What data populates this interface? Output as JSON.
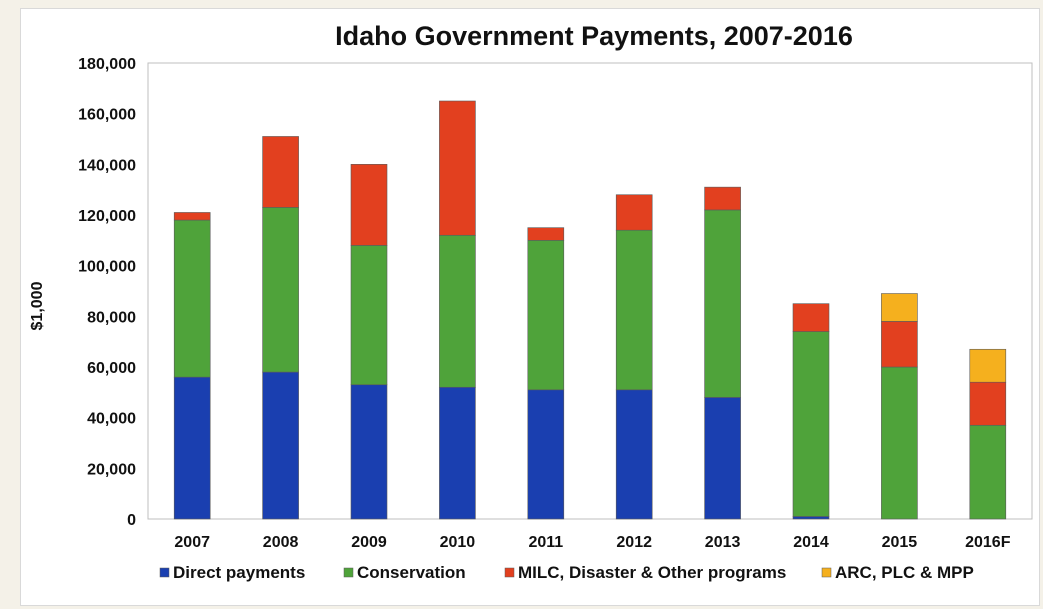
{
  "chart_data": {
    "type": "bar",
    "stacked": true,
    "title": "Idaho Government Payments, 2007-2016",
    "xlabel": "",
    "ylabel": "$1,000",
    "ylim": [
      0,
      180000
    ],
    "yticks": [
      0,
      20000,
      40000,
      60000,
      80000,
      100000,
      120000,
      140000,
      160000,
      180000
    ],
    "ytick_labels": [
      "0",
      "20,000",
      "40,000",
      "60,000",
      "80,000",
      "100,000",
      "120,000",
      "140,000",
      "160,000",
      "180,000"
    ],
    "categories": [
      "2007",
      "2008",
      "2009",
      "2010",
      "2011",
      "2012",
      "2013",
      "2014",
      "2015",
      "2016F"
    ],
    "series": [
      {
        "name": "Direct payments",
        "color": "#1a3fb0",
        "values": [
          56000,
          58000,
          53000,
          52000,
          51000,
          51000,
          48000,
          1000,
          0,
          0
        ]
      },
      {
        "name": "Conservation",
        "color": "#4fa33a",
        "values": [
          62000,
          65000,
          55000,
          60000,
          59000,
          63000,
          74000,
          73000,
          60000,
          37000
        ]
      },
      {
        "name": "MILC, Disaster & Other programs",
        "color": "#e2401f",
        "values": [
          3000,
          28000,
          32000,
          53000,
          5000,
          14000,
          9000,
          11000,
          18000,
          17000
        ]
      },
      {
        "name": "ARC, PLC & MPP",
        "color": "#f5b01e",
        "values": [
          0,
          0,
          0,
          0,
          0,
          0,
          0,
          0,
          11000,
          13000
        ]
      }
    ],
    "legend_position": "bottom",
    "grid": false
  }
}
